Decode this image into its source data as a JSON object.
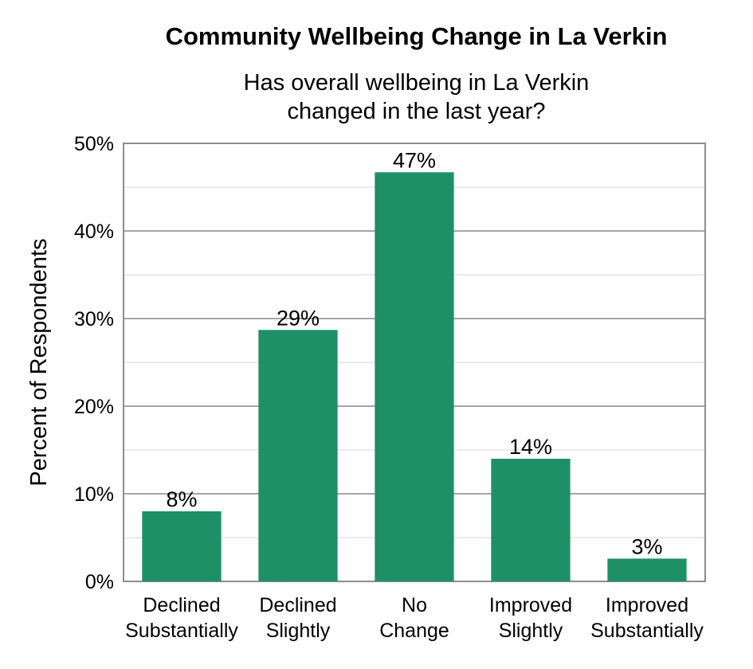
{
  "chart_data": {
    "type": "bar",
    "title": "Community Wellbeing Change in La Verkin",
    "subtitle_lines": [
      "Has overall wellbeing in La Verkin",
      "changed in the last year?"
    ],
    "ylabel": "Percent of Respondents",
    "xlabel": "",
    "ylim": [
      0,
      50
    ],
    "yticks": [
      0,
      10,
      20,
      30,
      40,
      50
    ],
    "ytick_labels": [
      "0%",
      "10%",
      "20%",
      "30%",
      "40%",
      "50%"
    ],
    "categories": [
      [
        "Declined",
        "Substantially"
      ],
      [
        "Declined",
        "Slightly"
      ],
      [
        "No",
        "Change"
      ],
      [
        "Improved",
        "Slightly"
      ],
      [
        "Improved",
        "Substantially"
      ]
    ],
    "values": [
      8,
      28.7,
      46.7,
      14,
      2.6
    ],
    "data_labels": [
      "8%",
      "29%",
      "47%",
      "14%",
      "3%"
    ],
    "bar_color": "#1e9068",
    "grid": true,
    "legend": "none"
  }
}
